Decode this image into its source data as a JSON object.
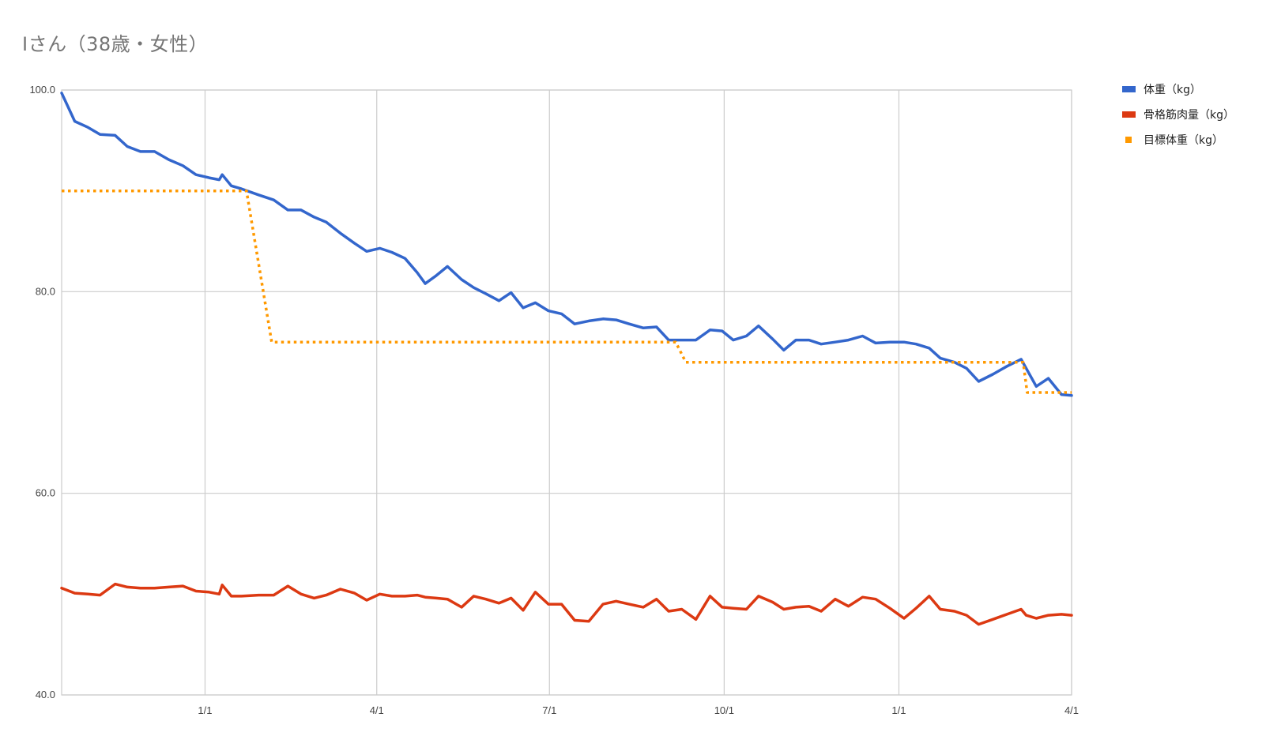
{
  "chart_data": {
    "type": "line",
    "title": "Iさん（38歳・女性）",
    "xlabel": "",
    "ylabel": "",
    "ylim": [
      40,
      100
    ],
    "y_ticks": [
      "100.0",
      "80.0",
      "60.0",
      "40.0"
    ],
    "x_ticks": [
      "1/1",
      "4/1",
      "7/1",
      "10/1",
      "1/1",
      "4/1"
    ],
    "grid": true,
    "legend_position": "right",
    "x_range": [
      0,
      100
    ],
    "x_tick_positions": [
      14.2,
      31.2,
      48.3,
      65.6,
      82.9,
      100
    ],
    "series": [
      {
        "name": "体重（kg）",
        "color": "#3366cc",
        "style": "solid",
        "points": [
          [
            0,
            99.7
          ],
          [
            1.3,
            96.9
          ],
          [
            2.6,
            96.3
          ],
          [
            3.8,
            95.6
          ],
          [
            5.3,
            95.5
          ],
          [
            6.5,
            94.4
          ],
          [
            7.8,
            93.9
          ],
          [
            9.2,
            93.9
          ],
          [
            10.6,
            93.1
          ],
          [
            12.0,
            92.5
          ],
          [
            13.3,
            91.6
          ],
          [
            14.6,
            91.3
          ],
          [
            15.6,
            91.1
          ],
          [
            15.9,
            91.6
          ],
          [
            16.8,
            90.5
          ],
          [
            17.8,
            90.2
          ],
          [
            19.5,
            89.6
          ],
          [
            21.0,
            89.1
          ],
          [
            22.4,
            88.1
          ],
          [
            23.7,
            88.1
          ],
          [
            25.0,
            87.4
          ],
          [
            26.2,
            86.9
          ],
          [
            27.6,
            85.8
          ],
          [
            29.0,
            84.8
          ],
          [
            30.2,
            84.0
          ],
          [
            31.5,
            84.3
          ],
          [
            32.7,
            83.9
          ],
          [
            34.0,
            83.3
          ],
          [
            35.2,
            81.9
          ],
          [
            36.0,
            80.8
          ],
          [
            37.1,
            81.6
          ],
          [
            38.2,
            82.5
          ],
          [
            39.6,
            81.2
          ],
          [
            40.8,
            80.4
          ],
          [
            42.0,
            79.8
          ],
          [
            43.3,
            79.1
          ],
          [
            44.5,
            79.9
          ],
          [
            45.7,
            78.4
          ],
          [
            46.9,
            78.9
          ],
          [
            48.2,
            78.1
          ],
          [
            49.5,
            77.8
          ],
          [
            50.8,
            76.8
          ],
          [
            52.2,
            77.1
          ],
          [
            53.6,
            77.3
          ],
          [
            54.9,
            77.2
          ],
          [
            56.2,
            76.8
          ],
          [
            57.6,
            76.4
          ],
          [
            58.9,
            76.5
          ],
          [
            60.1,
            75.2
          ],
          [
            61.4,
            75.2
          ],
          [
            62.8,
            75.2
          ],
          [
            64.2,
            76.2
          ],
          [
            65.4,
            76.1
          ],
          [
            66.5,
            75.2
          ],
          [
            67.8,
            75.6
          ],
          [
            69.0,
            76.6
          ],
          [
            70.4,
            75.3
          ],
          [
            71.5,
            74.2
          ],
          [
            72.7,
            75.2
          ],
          [
            74.0,
            75.2
          ],
          [
            75.2,
            74.8
          ],
          [
            76.6,
            75.0
          ],
          [
            77.9,
            75.2
          ],
          [
            79.3,
            75.6
          ],
          [
            80.6,
            74.9
          ],
          [
            82.0,
            75.0
          ],
          [
            83.4,
            75.0
          ],
          [
            84.6,
            74.8
          ],
          [
            85.9,
            74.4
          ],
          [
            87.0,
            73.4
          ],
          [
            88.4,
            73.0
          ],
          [
            89.6,
            72.4
          ],
          [
            90.8,
            71.1
          ],
          [
            92.2,
            71.8
          ],
          [
            93.6,
            72.6
          ],
          [
            95.0,
            73.3
          ],
          [
            96.5,
            70.6
          ],
          [
            97.7,
            71.4
          ],
          [
            99.0,
            69.8
          ],
          [
            100,
            69.7
          ]
        ]
      },
      {
        "name": "骨格筋肉量（kg）",
        "color": "#dc3912",
        "style": "solid",
        "points": [
          [
            0,
            50.6
          ],
          [
            1.3,
            50.1
          ],
          [
            2.6,
            50.0
          ],
          [
            3.8,
            49.9
          ],
          [
            5.3,
            51.0
          ],
          [
            6.5,
            50.7
          ],
          [
            7.8,
            50.6
          ],
          [
            9.2,
            50.6
          ],
          [
            10.6,
            50.7
          ],
          [
            12.0,
            50.8
          ],
          [
            13.3,
            50.3
          ],
          [
            14.6,
            50.2
          ],
          [
            15.6,
            50.0
          ],
          [
            15.9,
            50.9
          ],
          [
            16.8,
            49.8
          ],
          [
            17.8,
            49.8
          ],
          [
            19.5,
            49.9
          ],
          [
            21.0,
            49.9
          ],
          [
            22.4,
            50.8
          ],
          [
            23.7,
            50.0
          ],
          [
            25.0,
            49.6
          ],
          [
            26.2,
            49.9
          ],
          [
            27.6,
            50.5
          ],
          [
            29.0,
            50.1
          ],
          [
            30.2,
            49.4
          ],
          [
            31.5,
            50.0
          ],
          [
            32.7,
            49.8
          ],
          [
            34.0,
            49.8
          ],
          [
            35.2,
            49.9
          ],
          [
            36.0,
            49.7
          ],
          [
            37.1,
            49.6
          ],
          [
            38.2,
            49.5
          ],
          [
            39.6,
            48.7
          ],
          [
            40.8,
            49.8
          ],
          [
            42.0,
            49.5
          ],
          [
            43.3,
            49.1
          ],
          [
            44.5,
            49.6
          ],
          [
            45.7,
            48.4
          ],
          [
            46.9,
            50.2
          ],
          [
            48.2,
            49.0
          ],
          [
            49.5,
            49.0
          ],
          [
            50.8,
            47.4
          ],
          [
            52.2,
            47.3
          ],
          [
            53.6,
            49.0
          ],
          [
            54.9,
            49.3
          ],
          [
            56.2,
            49.0
          ],
          [
            57.6,
            48.7
          ],
          [
            58.9,
            49.5
          ],
          [
            60.1,
            48.3
          ],
          [
            61.4,
            48.5
          ],
          [
            62.8,
            47.5
          ],
          [
            64.2,
            49.8
          ],
          [
            65.4,
            48.7
          ],
          [
            66.5,
            48.6
          ],
          [
            67.8,
            48.5
          ],
          [
            69.0,
            49.8
          ],
          [
            70.4,
            49.2
          ],
          [
            71.5,
            48.5
          ],
          [
            72.7,
            48.7
          ],
          [
            74.0,
            48.8
          ],
          [
            75.2,
            48.3
          ],
          [
            76.6,
            49.5
          ],
          [
            77.9,
            48.8
          ],
          [
            79.3,
            49.7
          ],
          [
            80.6,
            49.5
          ],
          [
            82.0,
            48.6
          ],
          [
            83.4,
            47.6
          ],
          [
            84.6,
            48.6
          ],
          [
            85.9,
            49.8
          ],
          [
            87.0,
            48.5
          ],
          [
            88.4,
            48.3
          ],
          [
            89.6,
            47.9
          ],
          [
            90.8,
            47.0
          ],
          [
            92.2,
            47.5
          ],
          [
            93.6,
            48.0
          ],
          [
            95.0,
            48.5
          ],
          [
            95.5,
            47.9
          ],
          [
            96.5,
            47.6
          ],
          [
            97.7,
            47.9
          ],
          [
            99.0,
            48.0
          ],
          [
            100,
            47.9
          ]
        ]
      },
      {
        "name": "目標体重（kg）",
        "color": "#ff9900",
        "style": "dotted",
        "points": [
          [
            0,
            90.0
          ],
          [
            18.3,
            90.0
          ],
          [
            20.8,
            75.0
          ],
          [
            60.8,
            75.0
          ],
          [
            61.8,
            73.0
          ],
          [
            95.2,
            73.0
          ],
          [
            95.6,
            70.0
          ],
          [
            100,
            70.0
          ]
        ]
      }
    ]
  }
}
